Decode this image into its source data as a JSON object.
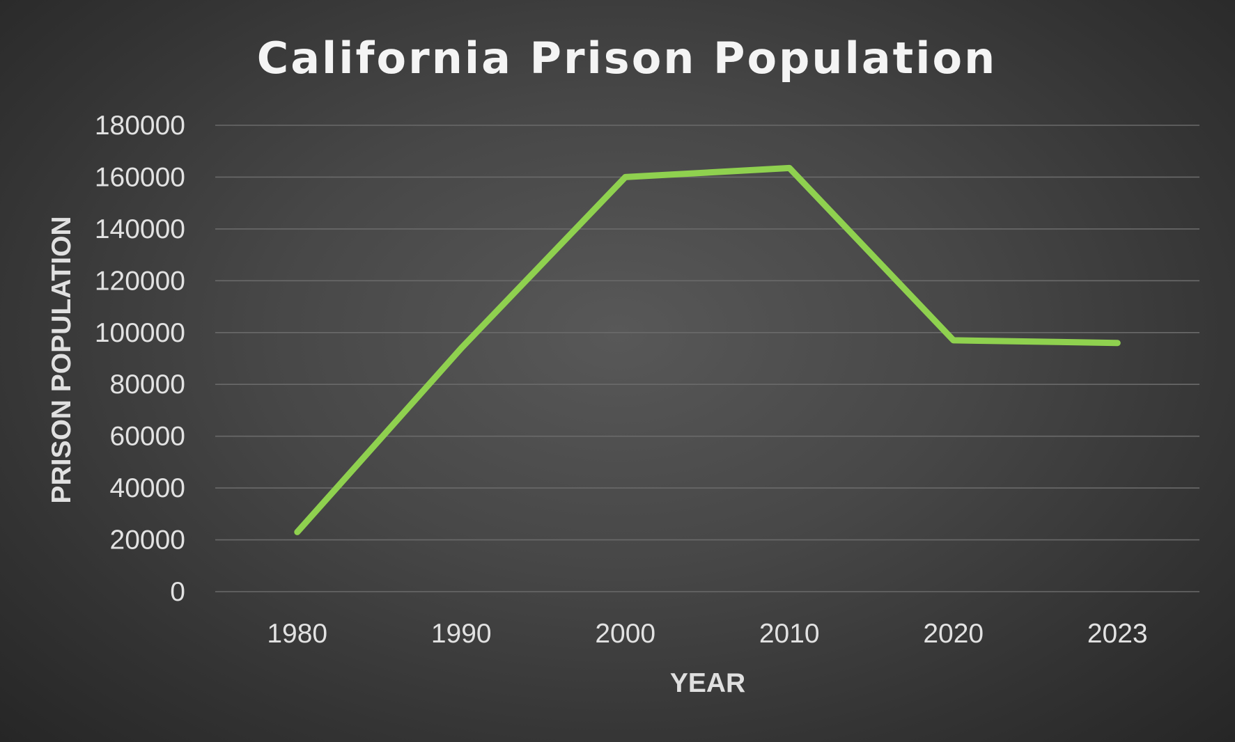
{
  "chart_data": {
    "type": "line",
    "title": "California Prison Population",
    "xlabel": "YEAR",
    "ylabel": "PRISON POPULATION",
    "categories": [
      "1980",
      "1990",
      "2000",
      "2010",
      "2020",
      "2023"
    ],
    "series": [
      {
        "values": [
          23000,
          94000,
          160000,
          163500,
          97000,
          96000
        ],
        "color": "#8fd14f"
      }
    ],
    "ylim": [
      0,
      180000
    ],
    "yticks": [
      "0",
      "20000",
      "40000",
      "60000",
      "80000",
      "100000",
      "120000",
      "140000",
      "160000",
      "180000"
    ],
    "grid": true,
    "legend": "none"
  }
}
